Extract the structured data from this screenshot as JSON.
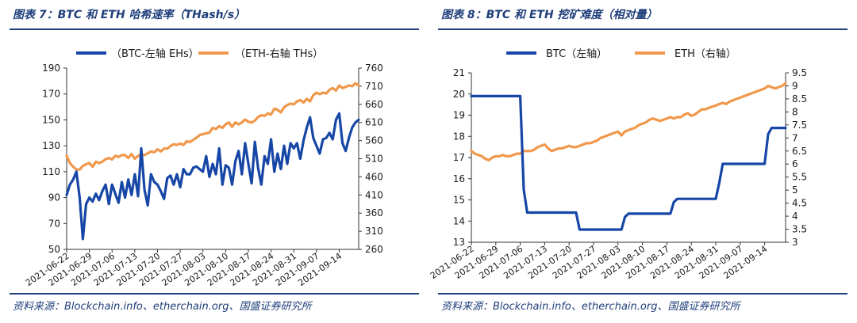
{
  "colors": {
    "navy": "#1f3e7a",
    "blue_series": "#1747a6",
    "orange_series": "#f0984b"
  },
  "panels": [
    {
      "title": "图表 7：BTC 和 ETH 哈希速率（THash/s）",
      "source": "资料来源：Blockchain.info、etherchain.org、国盛证券研究所"
    },
    {
      "title": "图表 8：BTC 和 ETH 挖矿难度（相对量）",
      "source": "资料来源：Blockchain.info、etherchain.org、国盛证券研究所"
    }
  ],
  "chart_data": [
    {
      "type": "line",
      "title": "BTC 和 ETH 哈希速率（THash/s）",
      "x_ticks": [
        "2021-06-22",
        "2021-06-29",
        "2021-07-06",
        "2021-07-13",
        "2021-07-20",
        "2021-07-27",
        "2021-08-03",
        "2021-08-10",
        "2021-08-17",
        "2021-08-24",
        "2021-08-31",
        "2021-09-07",
        "2021-09-14"
      ],
      "n_points": 91,
      "y_left": {
        "min": 50,
        "max": 190,
        "ticks": [
          "50",
          "70",
          "90",
          "110",
          "130",
          "150",
          "170",
          "190"
        ]
      },
      "y_right": {
        "min": 260,
        "max": 760,
        "ticks": [
          "260",
          "310",
          "360",
          "410",
          "460",
          "510",
          "560",
          "610",
          "660",
          "710",
          "760"
        ]
      },
      "legend": [
        "（BTC-左轴 EHs）",
        "（ETH-右轴 THs）"
      ],
      "series": [
        {
          "name": "（BTC-左轴 EHs）",
          "axis": "left",
          "color": "#1747a6",
          "values": [
            92,
            100,
            104,
            110,
            90,
            58,
            85,
            90,
            87,
            93,
            88,
            95,
            100,
            85,
            100,
            93,
            86,
            102,
            90,
            104,
            92,
            108,
            91,
            128,
            96,
            84,
            108,
            102,
            100,
            95,
            89,
            105,
            107,
            100,
            108,
            98,
            112,
            108,
            108,
            113,
            114,
            112,
            110,
            122,
            106,
            116,
            108,
            128,
            100,
            115,
            113,
            100,
            118,
            126,
            108,
            132,
            116,
            101,
            133,
            113,
            100,
            122,
            116,
            135,
            110,
            124,
            112,
            130,
            116,
            132,
            128,
            132,
            120,
            134,
            144,
            152,
            136,
            130,
            124,
            135,
            136,
            140,
            135,
            150,
            155,
            132,
            126,
            136,
            144,
            148,
            150
          ]
        },
        {
          "name": "（ETH-右轴 THs）",
          "axis": "right",
          "color": "#f0984b",
          "values": [
            518,
            498,
            488,
            480,
            480,
            490,
            495,
            498,
            488,
            502,
            498,
            502,
            509,
            512,
            508,
            518,
            515,
            520,
            520,
            512,
            523,
            510,
            518,
            520,
            520,
            525,
            530,
            528,
            536,
            530,
            538,
            538,
            545,
            550,
            548,
            552,
            548,
            558,
            556,
            562,
            568,
            575,
            578,
            580,
            582,
            595,
            592,
            600,
            595,
            605,
            610,
            598,
            610,
            605,
            610,
            618,
            612,
            610,
            615,
            625,
            630,
            628,
            635,
            632,
            648,
            645,
            638,
            652,
            658,
            662,
            660,
            668,
            672,
            665,
            675,
            668,
            685,
            692,
            688,
            692,
            690,
            700,
            705,
            698,
            712,
            705,
            708,
            712,
            710,
            718,
            712
          ]
        }
      ]
    },
    {
      "type": "line",
      "title": "BTC 和 ETH 挖矿难度（相对量）",
      "x_ticks": [
        "2021-06-22",
        "2021-06-29",
        "2021-07-06",
        "2021-07-13",
        "2021-07-20",
        "2021-07-27",
        "2021-08-03",
        "2021-08-10",
        "2021-08-17",
        "2021-08-24",
        "2021-08-31",
        "2021-09-07",
        "2021-09-14"
      ],
      "n_points": 91,
      "y_left": {
        "min": 13,
        "max": 21,
        "ticks": [
          "13",
          "14",
          "15",
          "16",
          "17",
          "18",
          "19",
          "20",
          "21"
        ]
      },
      "y_right": {
        "min": 3,
        "max": 9.5,
        "ticks": [
          "3",
          "3.5",
          "4",
          "4.5",
          "5",
          "5.5",
          "6",
          "6.5",
          "7",
          "7.5",
          "8",
          "8.5",
          "9",
          "9.5"
        ]
      },
      "legend": [
        "BTC（左轴）",
        "ETH（右轴）"
      ],
      "series": [
        {
          "name": "BTC（左轴）",
          "axis": "left",
          "color": "#1747a6",
          "values": [
            19.9,
            19.9,
            19.9,
            19.9,
            19.9,
            19.9,
            19.9,
            19.9,
            19.9,
            19.9,
            19.9,
            19.9,
            19.9,
            19.9,
            19.9,
            15.5,
            14.4,
            14.4,
            14.4,
            14.4,
            14.4,
            14.4,
            14.4,
            14.4,
            14.4,
            14.4,
            14.4,
            14.4,
            14.4,
            14.4,
            14.4,
            13.6,
            13.6,
            13.6,
            13.6,
            13.6,
            13.6,
            13.6,
            13.6,
            13.6,
            13.6,
            13.6,
            13.6,
            13.6,
            14.2,
            14.35,
            14.35,
            14.35,
            14.35,
            14.35,
            14.35,
            14.35,
            14.35,
            14.35,
            14.35,
            14.35,
            14.35,
            14.35,
            14.9,
            15.05,
            15.05,
            15.05,
            15.05,
            15.05,
            15.05,
            15.05,
            15.05,
            15.05,
            15.05,
            15.05,
            15.05,
            15.8,
            16.7,
            16.7,
            16.7,
            16.7,
            16.7,
            16.7,
            16.7,
            16.7,
            16.7,
            16.7,
            16.7,
            16.7,
            16.7,
            18.1,
            18.4,
            18.4,
            18.4,
            18.4,
            18.4
          ]
        },
        {
          "name": "ETH（右轴）",
          "axis": "right",
          "color": "#f0984b",
          "values": [
            6.5,
            6.4,
            6.35,
            6.3,
            6.2,
            6.15,
            6.25,
            6.3,
            6.3,
            6.35,
            6.3,
            6.3,
            6.35,
            6.4,
            6.4,
            6.5,
            6.5,
            6.5,
            6.55,
            6.65,
            6.7,
            6.75,
            6.6,
            6.5,
            6.55,
            6.6,
            6.6,
            6.65,
            6.7,
            6.65,
            6.65,
            6.7,
            6.75,
            6.8,
            6.8,
            6.85,
            6.9,
            7.0,
            7.05,
            7.1,
            7.15,
            7.2,
            7.25,
            7.1,
            7.25,
            7.3,
            7.35,
            7.4,
            7.5,
            7.55,
            7.6,
            7.7,
            7.75,
            7.7,
            7.65,
            7.7,
            7.75,
            7.8,
            7.75,
            7.8,
            7.8,
            7.9,
            7.95,
            7.85,
            7.9,
            8.0,
            8.1,
            8.1,
            8.15,
            8.2,
            8.25,
            8.3,
            8.35,
            8.3,
            8.4,
            8.45,
            8.5,
            8.55,
            8.6,
            8.65,
            8.7,
            8.75,
            8.8,
            8.85,
            8.9,
            9.0,
            8.95,
            8.9,
            8.95,
            9.0,
            9.1
          ]
        }
      ]
    }
  ]
}
